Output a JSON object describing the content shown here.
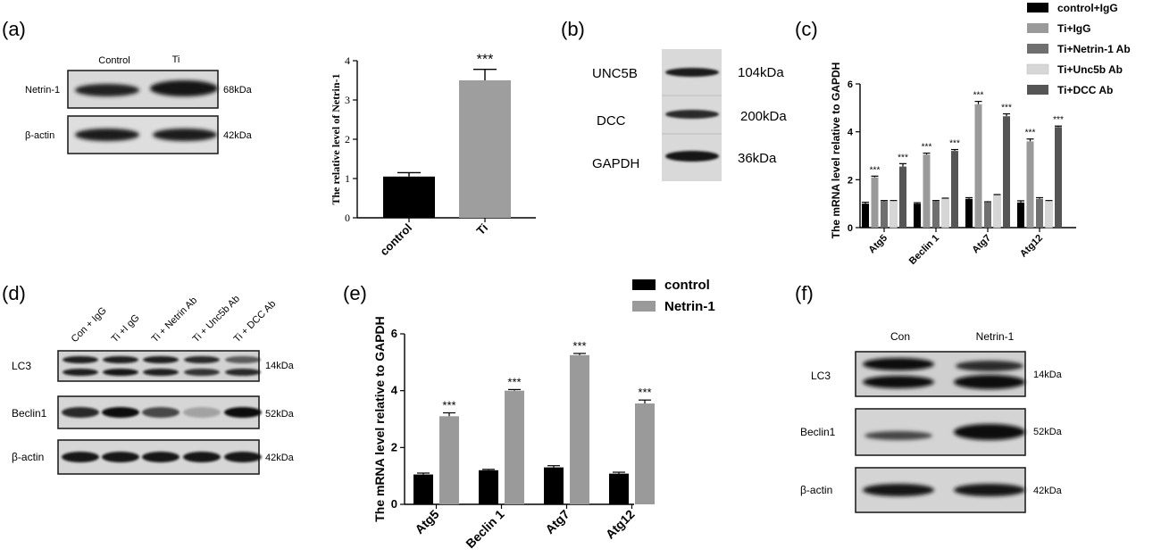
{
  "panel_labels": [
    "(a)",
    "(b)",
    "(c)",
    "(d)",
    "(e)",
    "(f)"
  ],
  "blots": {
    "a": {
      "lanes": [
        "Control",
        "Ti"
      ],
      "rows": [
        {
          "label": "Netrin-1",
          "size": "68kDa"
        },
        {
          "label": "β-actin",
          "size": "42kDa"
        }
      ]
    },
    "b": {
      "rows": [
        {
          "label": "UNC5B",
          "size": "104kDa"
        },
        {
          "label": "DCC",
          "size": "200kDa"
        },
        {
          "label": "GAPDH",
          "size": "36kDa"
        }
      ]
    },
    "d": {
      "lanes": [
        "Con + IgG",
        "Ti +I gG",
        "Ti + Netrin Ab",
        "Ti + Unc5b Ab",
        "Ti + DCC Ab"
      ],
      "rows": [
        {
          "label": "LC3",
          "size": "14kDa"
        },
        {
          "label": "Beclin1",
          "size": "52kDa"
        },
        {
          "label": "β-actin",
          "size": "42kDa"
        }
      ]
    },
    "f": {
      "lanes": [
        "Con",
        "Netrin-1"
      ],
      "rows": [
        {
          "label": "LC3",
          "size": "14kDa"
        },
        {
          "label": "Beclin1",
          "size": "52kDa"
        },
        {
          "label": "β-actin",
          "size": "42kDa"
        }
      ]
    }
  },
  "chart_data": [
    {
      "id": "a",
      "type": "bar",
      "categories": [
        "control",
        "Ti"
      ],
      "values": [
        1.05,
        3.5
      ],
      "errors": [
        0.1,
        0.28
      ],
      "colors": [
        "#000000",
        "#9e9e9e"
      ],
      "ylabel": "The  relative level of Netrin-1",
      "ylim": [
        0,
        4
      ],
      "yticks": [
        "0",
        "1",
        "2",
        "3",
        "4"
      ],
      "annotations": [
        {
          "category": "Ti",
          "text": "***"
        }
      ]
    },
    {
      "id": "c",
      "type": "bar",
      "categories": [
        "Atg5",
        "Beclin 1",
        "Atg7",
        "Atg12"
      ],
      "series": [
        {
          "name": "control+IgG",
          "color": "#000000",
          "values": [
            1.0,
            1.0,
            1.2,
            1.05
          ],
          "errors": [
            0.06,
            0.04,
            0.05,
            0.07
          ]
        },
        {
          "name": "Ti+IgG",
          "color": "#9a9a9a",
          "values": [
            2.1,
            3.05,
            5.15,
            3.6
          ],
          "errors": [
            0.05,
            0.06,
            0.12,
            0.1
          ]
        },
        {
          "name": "Ti+Netrin-1 Ab",
          "color": "#6f6f6f",
          "values": [
            1.1,
            1.1,
            1.05,
            1.2
          ],
          "errors": [
            0.03,
            0.03,
            0.03,
            0.05
          ]
        },
        {
          "name": "Ti+Unc5b Ab",
          "color": "#d6d6d6",
          "values": [
            1.1,
            1.2,
            1.35,
            1.1
          ],
          "errors": [
            0.03,
            0.03,
            0.03,
            0.03
          ]
        },
        {
          "name": "Ti+DCC Ab",
          "color": "#555555",
          "values": [
            2.55,
            3.2,
            4.65,
            4.2
          ],
          "errors": [
            0.12,
            0.06,
            0.1,
            0.04
          ]
        }
      ],
      "ylabel": "The mRNA level relative to GAPDH",
      "ylim": [
        0,
        6
      ],
      "yticks": [
        "0",
        "2",
        "4",
        "6"
      ],
      "legend_position": "top-right",
      "significance": [
        {
          "category": "Atg5",
          "series": [
            "Ti+IgG",
            "Ti+DCC Ab"
          ],
          "text": "***"
        },
        {
          "category": "Beclin 1",
          "series": [
            "Ti+IgG",
            "Ti+DCC Ab"
          ],
          "text": "***"
        },
        {
          "category": "Atg7",
          "series": [
            "Ti+IgG",
            "Ti+DCC Ab"
          ],
          "text": "***"
        },
        {
          "category": "Atg12",
          "series": [
            "Ti+IgG",
            "Ti+DCC Ab"
          ],
          "text": "***"
        }
      ]
    },
    {
      "id": "e",
      "type": "bar",
      "categories": [
        "Atg5",
        "Beclin 1",
        "Atg7",
        "Atg12"
      ],
      "series": [
        {
          "name": "control",
          "color": "#000000",
          "values": [
            1.05,
            1.2,
            1.3,
            1.08
          ],
          "errors": [
            0.05,
            0.03,
            0.06,
            0.05
          ]
        },
        {
          "name": "Netrin-1",
          "color": "#9a9a9a",
          "values": [
            3.1,
            4.0,
            5.25,
            3.55
          ],
          "errors": [
            0.12,
            0.04,
            0.06,
            0.12
          ]
        }
      ],
      "ylabel": "The mRNA level relative to GAPDH",
      "ylim": [
        0,
        6
      ],
      "yticks": [
        "0",
        "2",
        "4",
        "6"
      ],
      "legend_position": "top-right",
      "significance": [
        {
          "category": "Atg5",
          "series": [
            "Netrin-1"
          ],
          "text": "***"
        },
        {
          "category": "Beclin 1",
          "series": [
            "Netrin-1"
          ],
          "text": "***"
        },
        {
          "category": "Atg7",
          "series": [
            "Netrin-1"
          ],
          "text": "***"
        },
        {
          "category": "Atg12",
          "series": [
            "Netrin-1"
          ],
          "text": "***"
        }
      ]
    }
  ]
}
